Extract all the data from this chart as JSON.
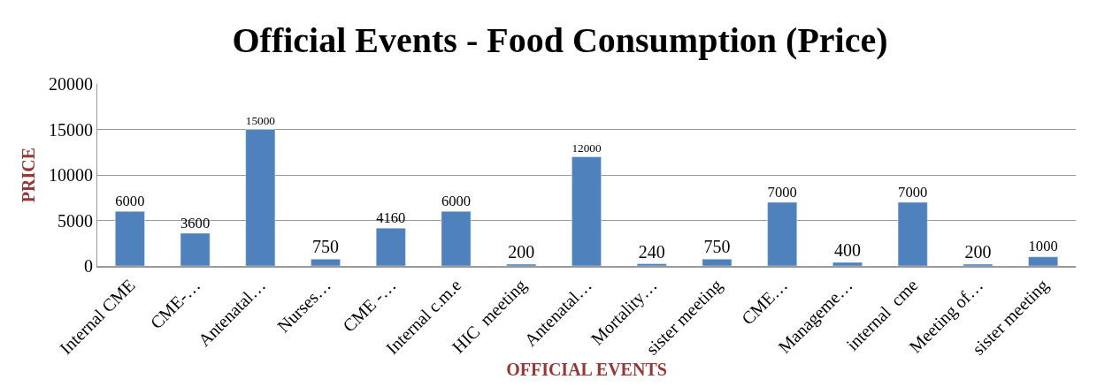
{
  "chart_data": {
    "type": "bar",
    "title": "Official Events - Food Consumption (Price)",
    "xlabel": "OFFICIAL EVENTS",
    "ylabel": "PRICE",
    "categories": [
      "Internal CME",
      "CME-…",
      "Antenatal…",
      "Nurses…",
      "CME -…",
      "Internal c.m.e",
      "HIC  meeting",
      "Antenatal…",
      "Mortality…",
      "sister meeting",
      "CME…",
      "Manageme…",
      "internal  cme",
      "Meeting of…",
      "sister meeting"
    ],
    "values": [
      6000,
      3600,
      15000,
      750,
      4160,
      6000,
      200,
      12000,
      240,
      750,
      7000,
      400,
      7000,
      200,
      1000
    ],
    "color": "#4f81bd",
    "ylim": [
      0,
      20000
    ],
    "yticks": [
      0,
      5000,
      10000,
      15000,
      20000
    ],
    "grid": "y",
    "data_labels": true,
    "legend": false
  }
}
